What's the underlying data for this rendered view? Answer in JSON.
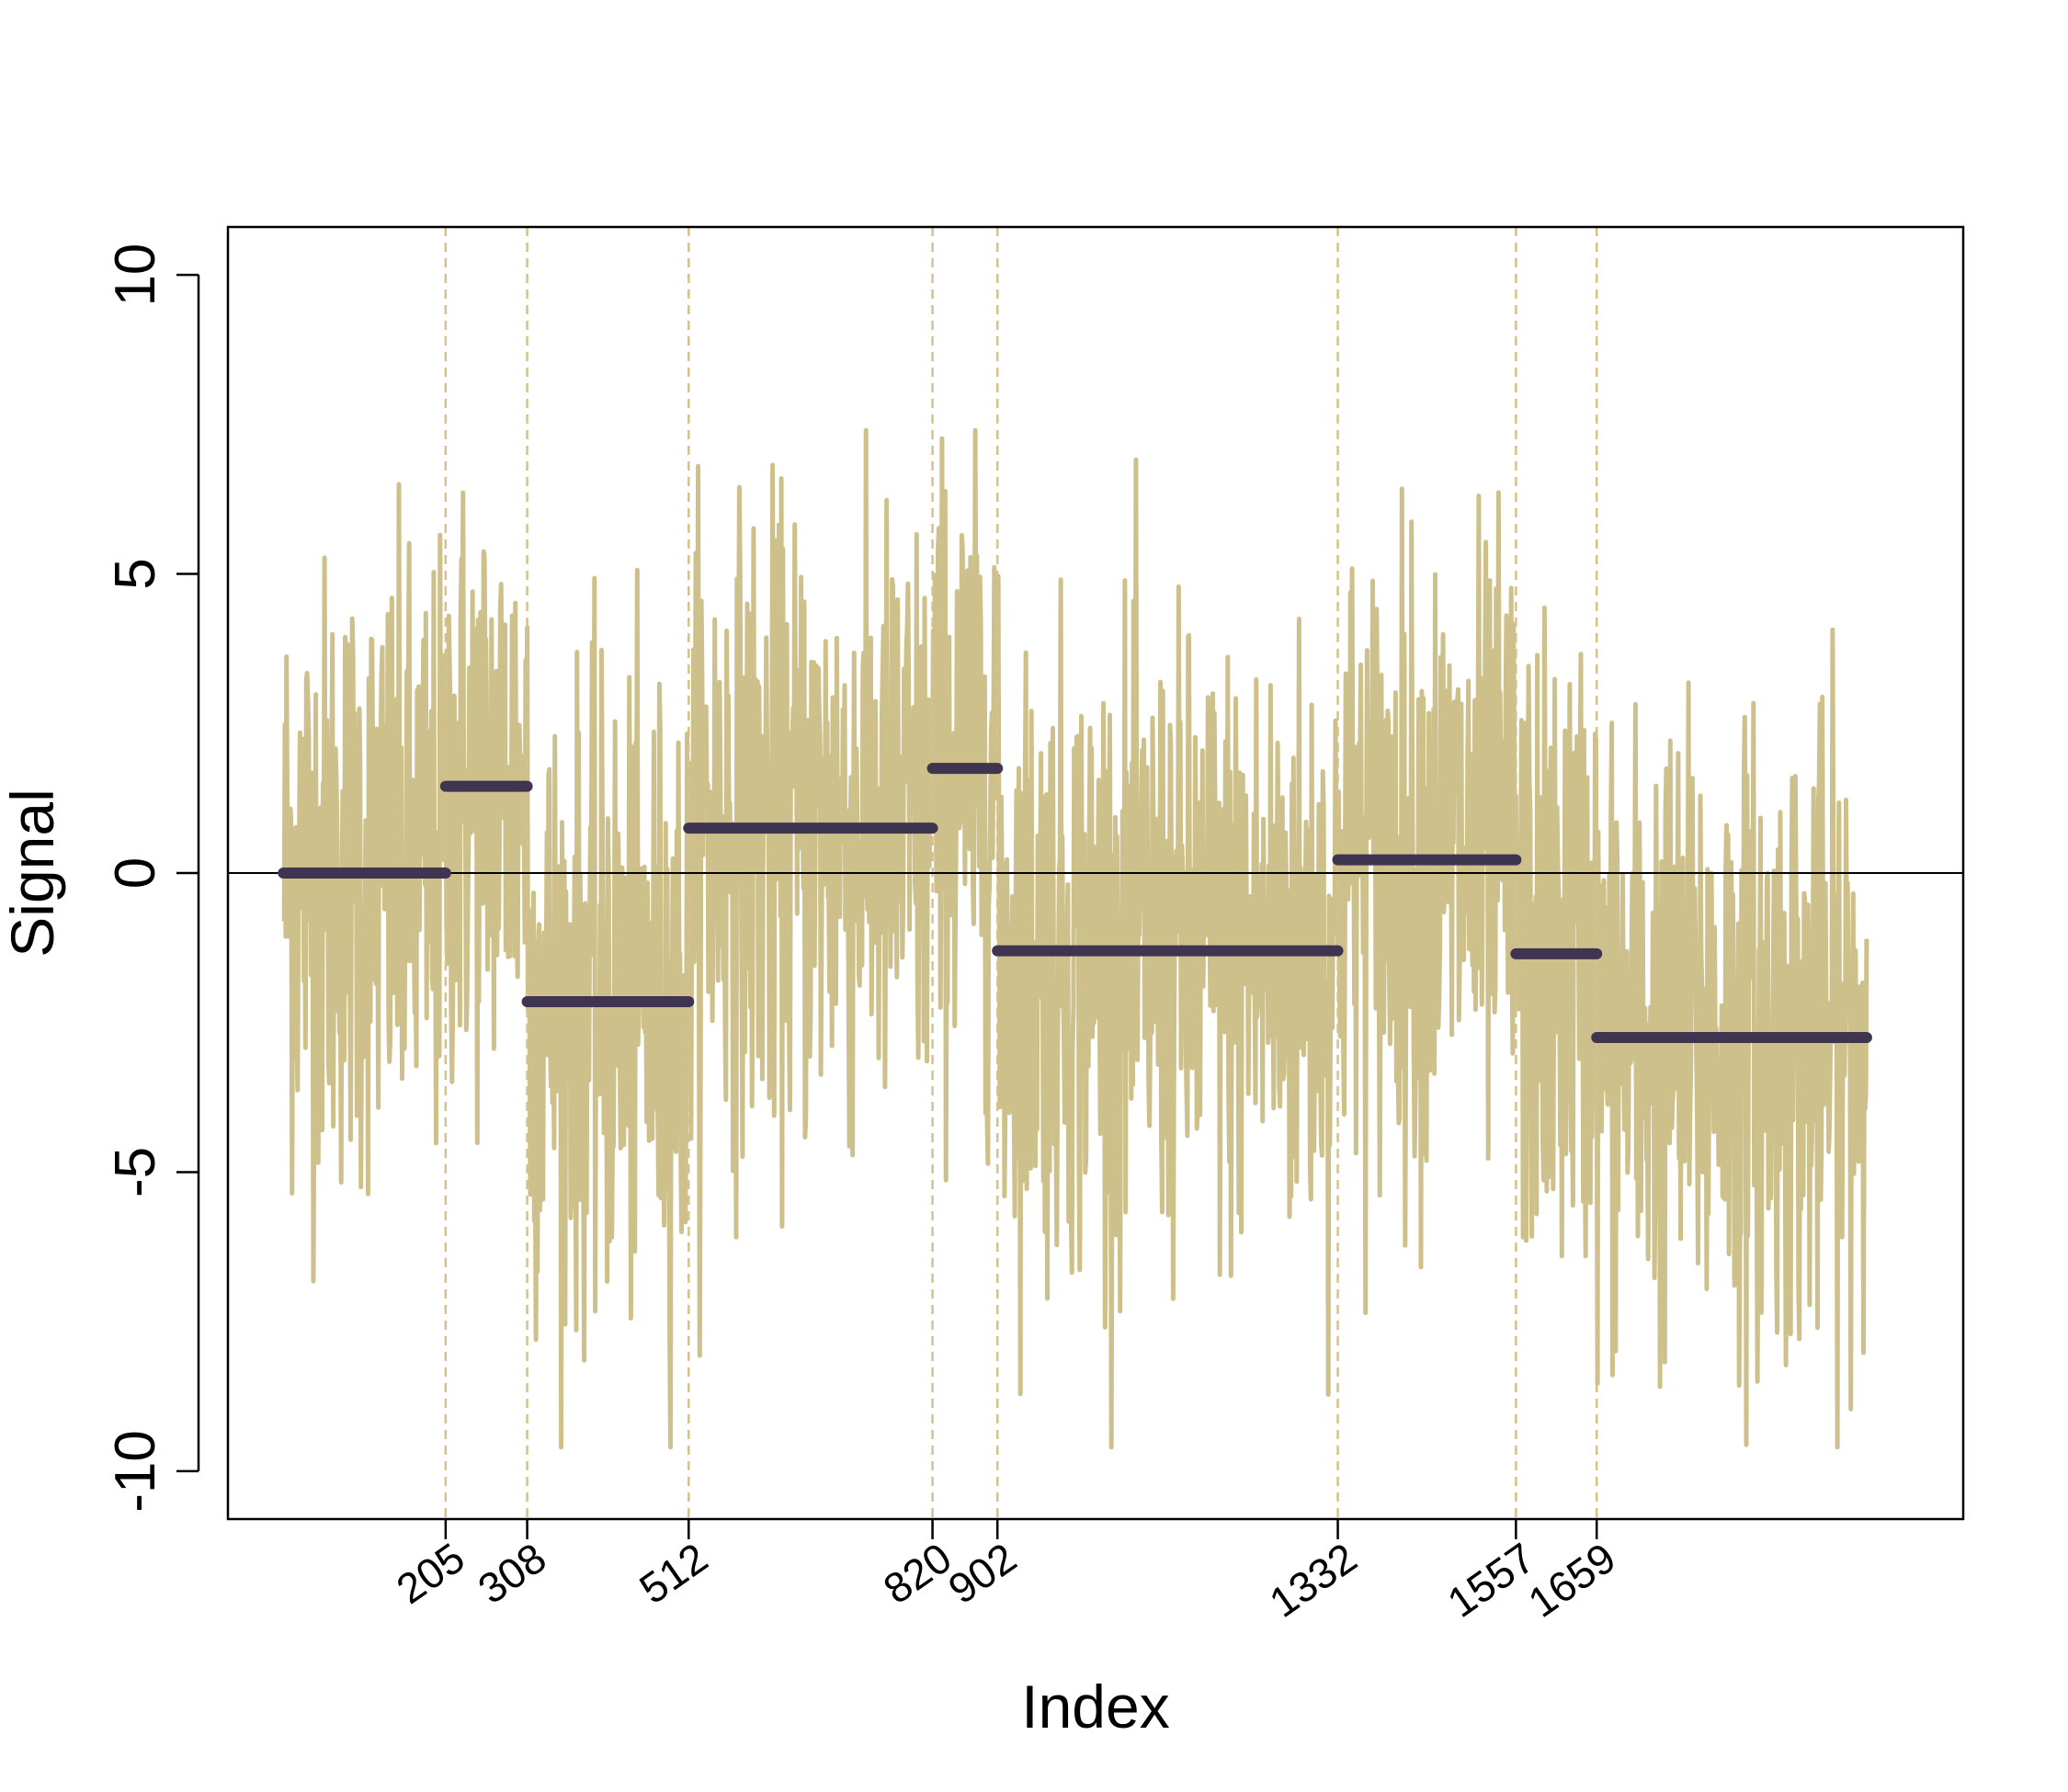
{
  "chart_data": {
    "type": "line",
    "title": "",
    "xlabel": "Index",
    "ylabel": "Signal",
    "xlim": [
      -70,
      2122
    ],
    "ylim": [
      -10.8,
      10.8
    ],
    "yticks": [
      10,
      5,
      0,
      -5,
      -10
    ],
    "ytick_labels": [
      "10",
      "5",
      "0",
      "-5",
      "-10"
    ],
    "n_points": 2000,
    "changepoints": [
      205,
      308,
      512,
      820,
      902,
      1332,
      1557,
      1659
    ],
    "changepoint_labels": [
      "205",
      "308",
      "512",
      "820",
      "902",
      "1332",
      "1557",
      "1659"
    ],
    "segment_means": [
      {
        "start": 0,
        "end": 205,
        "mean": 0.0
      },
      {
        "start": 205,
        "end": 308,
        "mean": 1.45
      },
      {
        "start": 308,
        "end": 512,
        "mean": -2.15
      },
      {
        "start": 512,
        "end": 820,
        "mean": 0.75
      },
      {
        "start": 820,
        "end": 902,
        "mean": 1.75
      },
      {
        "start": 902,
        "end": 1332,
        "mean": -1.3
      },
      {
        "start": 1332,
        "end": 1557,
        "mean": 0.22
      },
      {
        "start": 1557,
        "end": 1659,
        "mean": -1.35
      },
      {
        "start": 1659,
        "end": 2000,
        "mean": -2.75
      }
    ],
    "noise_sd": 2.6,
    "signal_color": "#CDC08A",
    "mean_color": "#3F3550",
    "changepoint_line_color": "#D6C08E",
    "reference_line_y": 0
  }
}
